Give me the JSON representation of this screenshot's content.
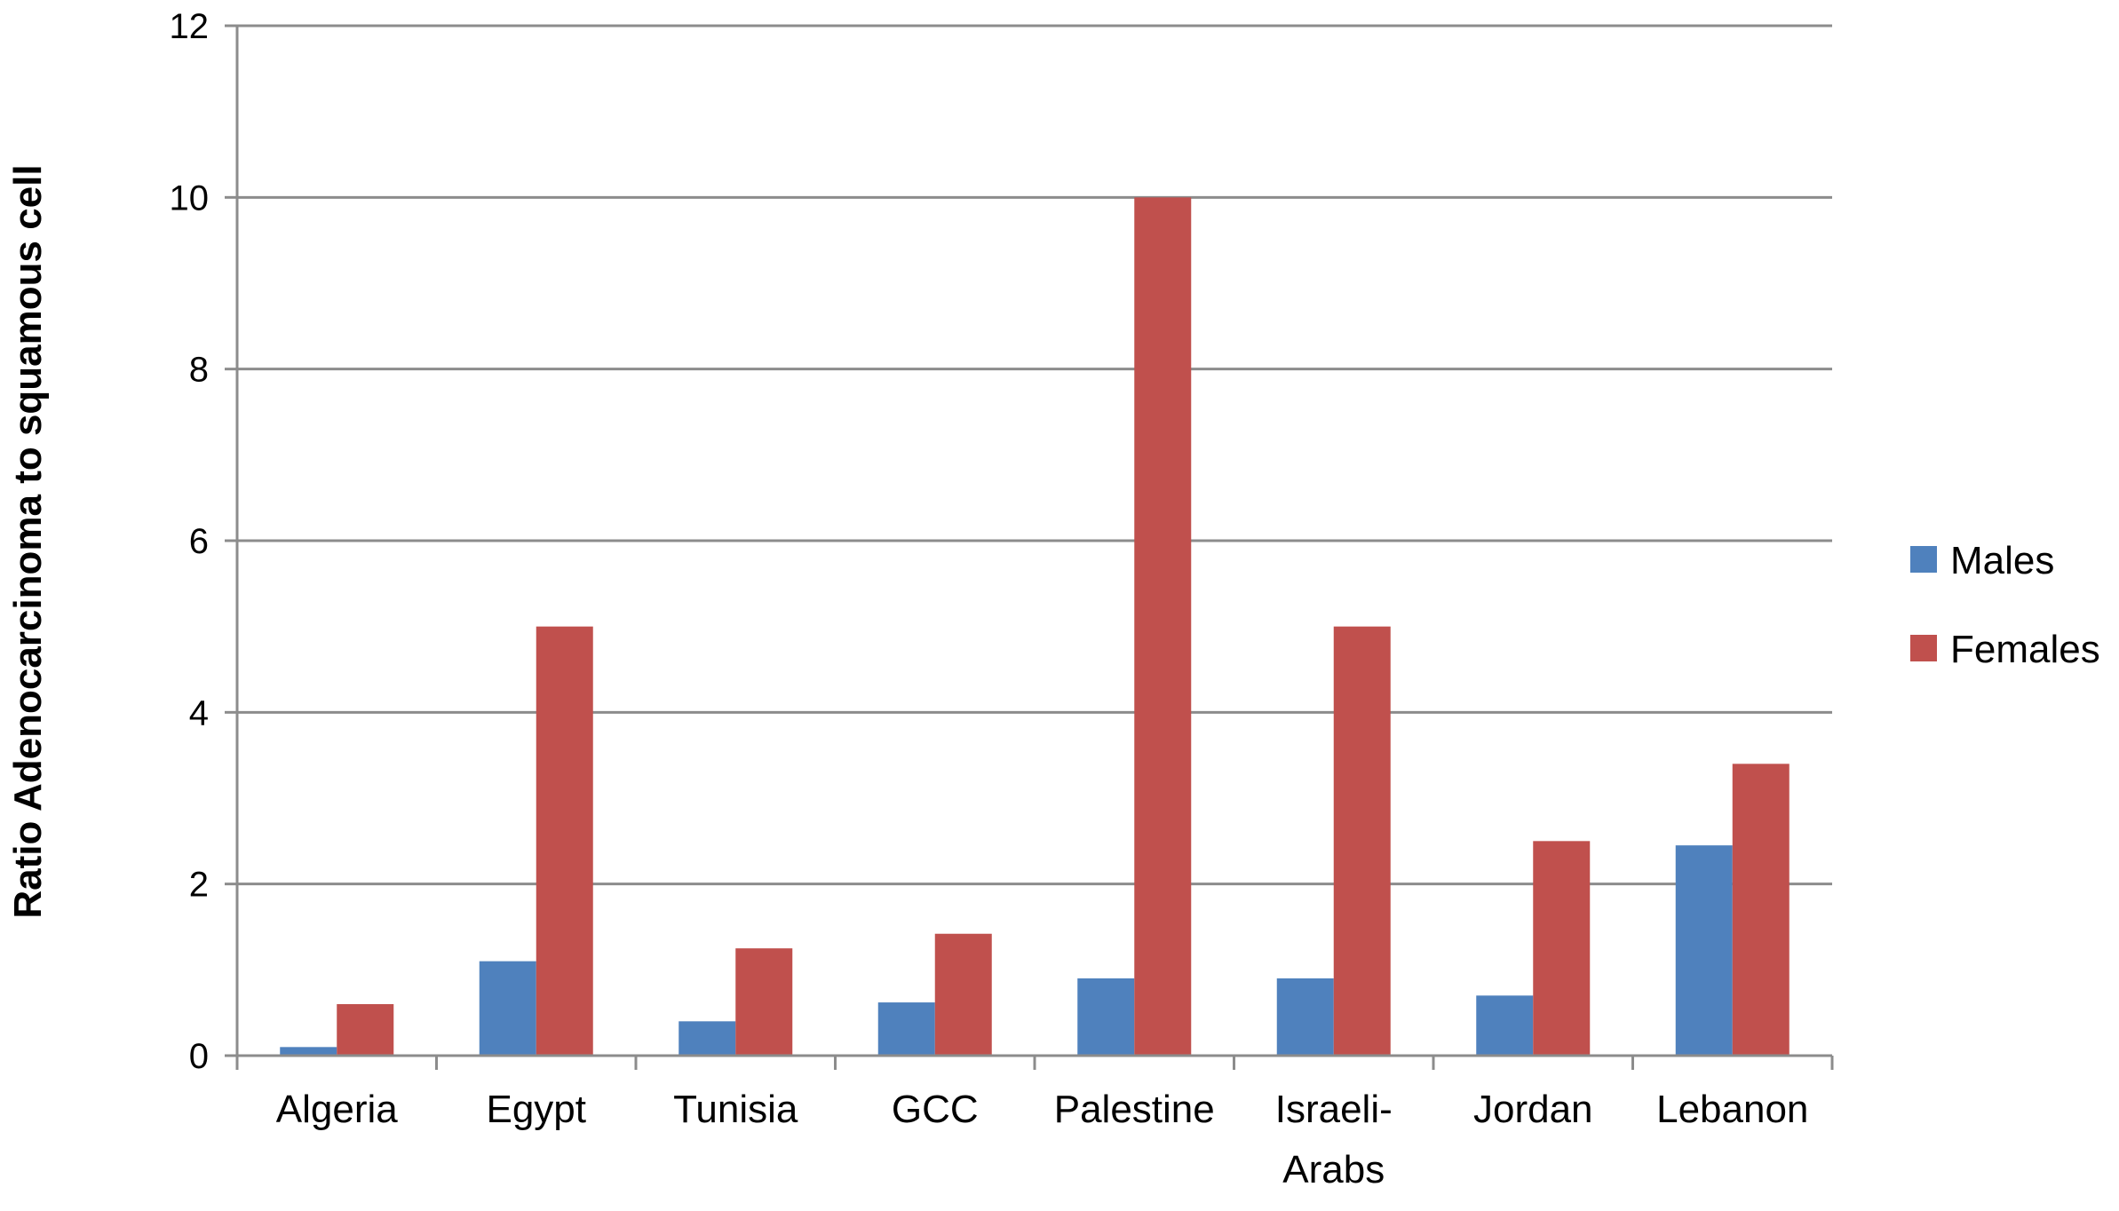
{
  "chart_data": {
    "type": "bar",
    "title": "",
    "xlabel": "",
    "ylabel": "Ratio Adenocarcinoma to squamous cell",
    "ylim": [
      0,
      12
    ],
    "yticks": [
      0,
      2,
      4,
      6,
      8,
      10,
      12
    ],
    "grid": "horizontal",
    "legend_position": "right",
    "categories": [
      [
        "Algeria"
      ],
      [
        "Egypt"
      ],
      [
        "Tunisia"
      ],
      [
        "GCC"
      ],
      [
        "Palestine"
      ],
      [
        "Israeli-",
        "Arabs"
      ],
      [
        "Jordan"
      ],
      [
        "Lebanon"
      ]
    ],
    "series": [
      {
        "name": "Males",
        "color": "#4F81BD",
        "values": [
          0.1,
          1.1,
          0.4,
          0.62,
          0.9,
          0.9,
          0.7,
          2.45
        ]
      },
      {
        "name": "Females",
        "color": "#C0504D",
        "values": [
          0.6,
          5.0,
          1.25,
          1.42,
          10.0,
          5.0,
          2.5,
          3.4
        ]
      }
    ]
  }
}
